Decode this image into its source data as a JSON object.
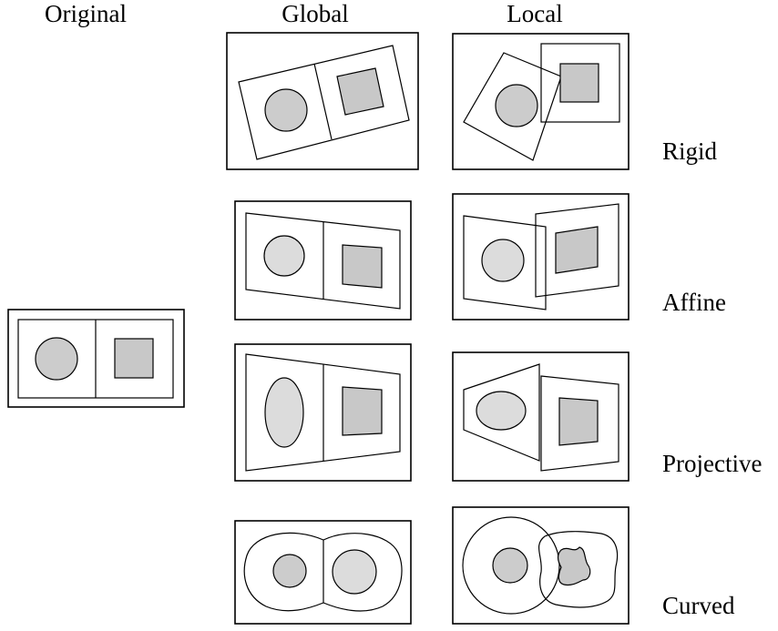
{
  "columns": {
    "original": "Original",
    "global": "Global",
    "local": "Local"
  },
  "rows": {
    "rigid": "Rigid",
    "affine": "Affine",
    "projective": "Projective",
    "curved": "Curved"
  },
  "colors": {
    "circle_fill": "#cccccc",
    "square_fill": "#c8c8c8",
    "light_fill": "#dcdcdc",
    "line": "#000000",
    "background": "#ffffff"
  }
}
